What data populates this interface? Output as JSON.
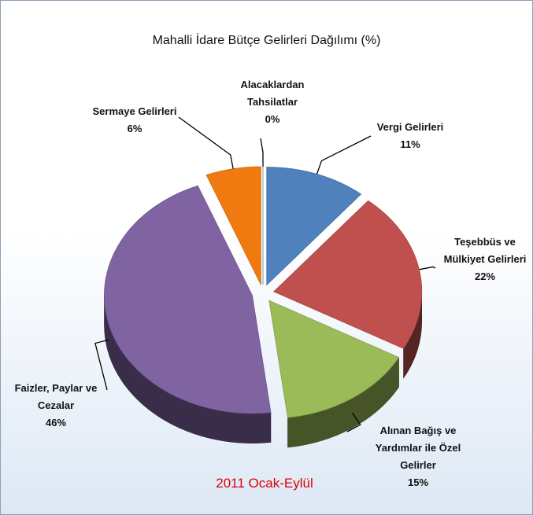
{
  "chart_data": {
    "type": "pie",
    "title": "Mahalli İdare Bütçe Gelirleri Dağılımı (%)",
    "subtitle": "2011 Ocak-Eylül",
    "categories": [
      "Vergi Gelirleri",
      "Teşebbüs ve Mülkiyet Gelirleri",
      "Alınan Bağış ve Yardımlar ile Özel Gelirler",
      "Faizler, Paylar ve Cezalar",
      "Sermaye Gelirleri",
      "Alacaklardan Tahsilatlar"
    ],
    "values": [
      11,
      22,
      15,
      46,
      6,
      0
    ],
    "value_labels": [
      "11%",
      "22%",
      "15%",
      "46%",
      "6%",
      "0%"
    ],
    "colors": [
      "#4f81bd",
      "#c0504d",
      "#9bbb59",
      "#8064a2",
      "#f07a10",
      "#4bacc6"
    ]
  }
}
